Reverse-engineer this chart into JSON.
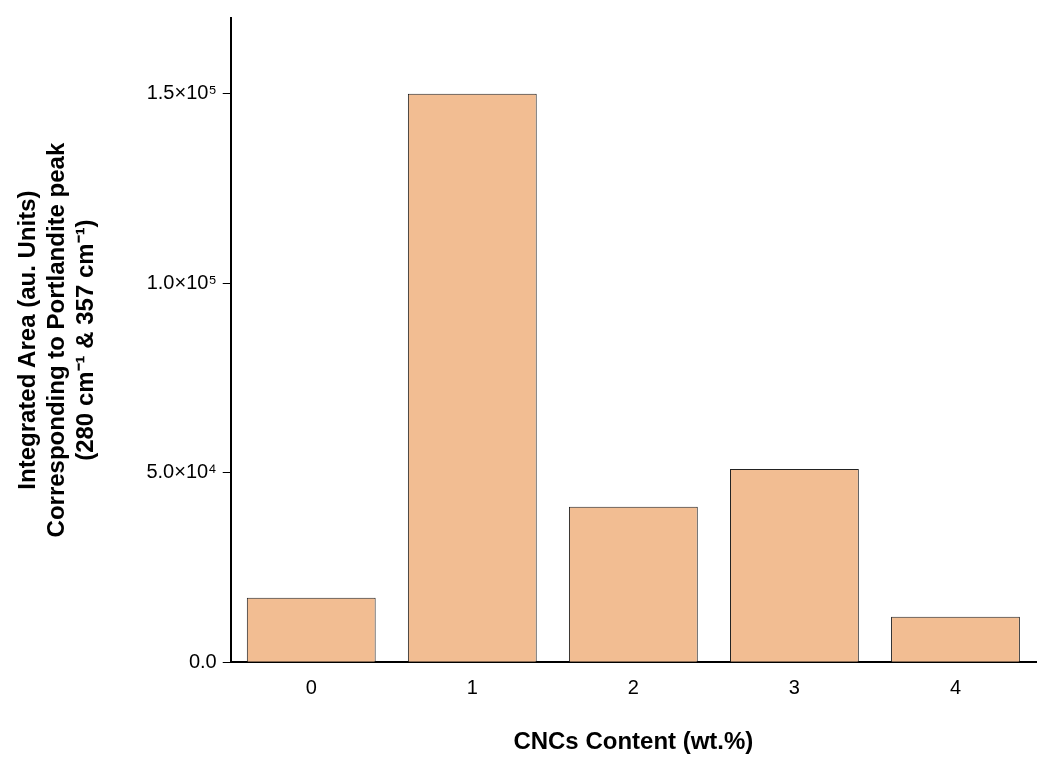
{
  "chart_data": {
    "type": "bar",
    "xlabel": "CNCs Content (wt.%)",
    "ylabel": "Integrated Area (au. Units)\nCorresponding to Portlandite peak\n(280 cm⁻¹ & 357 cm⁻¹)",
    "categories": [
      "0",
      "1",
      "2",
      "3",
      "4"
    ],
    "values": [
      17000,
      150000,
      41000,
      51000,
      12000
    ],
    "color": "#f2bd92",
    "ylim": [
      0,
      170000
    ],
    "yticks": [
      {
        "value": 0,
        "label": "0.0"
      },
      {
        "value": 50000,
        "label": "5.0×10⁴"
      },
      {
        "value": 100000,
        "label": "1.0×10⁵"
      },
      {
        "value": 150000,
        "label": "1.5×10⁵"
      }
    ],
    "grid": false,
    "legend": false
  }
}
